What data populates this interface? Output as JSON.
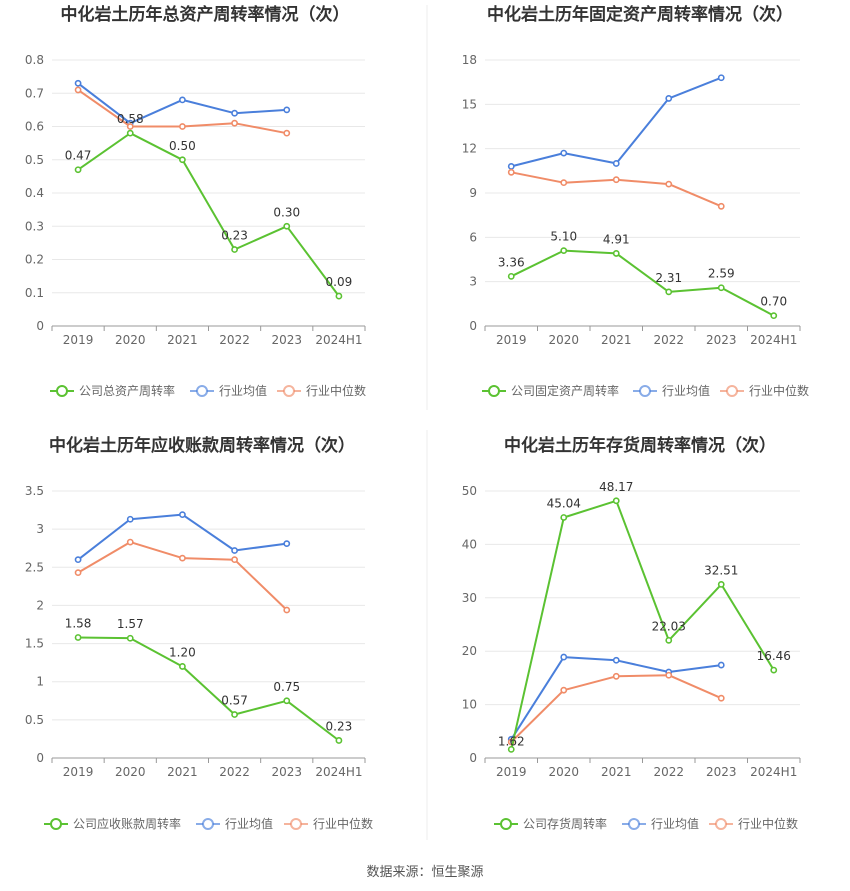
{
  "footer": {
    "source": "数据来源：恒生聚源"
  },
  "colors": {
    "company": "#5bc232",
    "avg": "#4a7fdb",
    "median": "#f08c68"
  },
  "chart_data": [
    {
      "type": "line",
      "title": "中化岩土历年总资产周转率情况（次）",
      "categories": [
        "2019",
        "2020",
        "2021",
        "2022",
        "2023",
        "2024H1"
      ],
      "ylim": [
        0,
        0.8
      ],
      "yticks": [
        "0",
        "0.1",
        "0.2",
        "0.3",
        "0.4",
        "0.5",
        "0.6",
        "0.7",
        "0.8"
      ],
      "series": [
        {
          "name": "公司总资产周转率",
          "role": "company",
          "values": [
            0.47,
            0.58,
            0.5,
            0.23,
            0.3,
            0.09
          ],
          "labels": [
            "0.47",
            "0.58",
            "0.50",
            "0.23",
            "0.30",
            "0.09"
          ]
        },
        {
          "name": "行业均值",
          "role": "avg",
          "values": [
            0.73,
            0.61,
            0.68,
            0.64,
            0.65,
            null
          ]
        },
        {
          "name": "行业中位数",
          "role": "median",
          "values": [
            0.71,
            0.6,
            0.6,
            0.61,
            0.58,
            null
          ]
        }
      ]
    },
    {
      "type": "line",
      "title": "中化岩土历年固定资产周转率情况（次）",
      "categories": [
        "2019",
        "2020",
        "2021",
        "2022",
        "2023",
        "2024H1"
      ],
      "ylim": [
        0,
        18
      ],
      "yticks": [
        "0",
        "3",
        "6",
        "9",
        "12",
        "15",
        "18"
      ],
      "series": [
        {
          "name": "公司固定资产周转率",
          "role": "company",
          "values": [
            3.36,
            5.1,
            4.91,
            2.31,
            2.59,
            0.7
          ],
          "labels": [
            "3.36",
            "5.10",
            "4.91",
            "2.31",
            "2.59",
            "0.70"
          ]
        },
        {
          "name": "行业均值",
          "role": "avg",
          "values": [
            10.8,
            11.7,
            11.0,
            15.4,
            16.8,
            null
          ]
        },
        {
          "name": "行业中位数",
          "role": "median",
          "values": [
            10.4,
            9.7,
            9.9,
            9.6,
            8.1,
            null
          ]
        }
      ]
    },
    {
      "type": "line",
      "title": "中化岩土历年应收账款周转率情况（次）",
      "categories": [
        "2019",
        "2020",
        "2021",
        "2022",
        "2023",
        "2024H1"
      ],
      "ylim": [
        0,
        3.5
      ],
      "yticks": [
        "0",
        "0.5",
        "1",
        "1.5",
        "2",
        "2.5",
        "3",
        "3.5"
      ],
      "series": [
        {
          "name": "公司应收账款周转率",
          "role": "company",
          "values": [
            1.58,
            1.57,
            1.2,
            0.57,
            0.75,
            0.23
          ],
          "labels": [
            "1.58",
            "1.57",
            "1.20",
            "0.57",
            "0.75",
            "0.23"
          ]
        },
        {
          "name": "行业均值",
          "role": "avg",
          "values": [
            2.6,
            3.13,
            3.19,
            2.72,
            2.81,
            null
          ]
        },
        {
          "name": "行业中位数",
          "role": "median",
          "values": [
            2.43,
            2.83,
            2.62,
            2.6,
            1.94,
            null
          ]
        }
      ]
    },
    {
      "type": "line",
      "title": "中化岩土历年存货周转率情况（次）",
      "categories": [
        "2019",
        "2020",
        "2021",
        "2022",
        "2023",
        "2024H1"
      ],
      "ylim": [
        0,
        50
      ],
      "yticks": [
        "0",
        "10",
        "20",
        "30",
        "40",
        "50"
      ],
      "series": [
        {
          "name": "公司存货周转率",
          "role": "company",
          "values": [
            1.62,
            45.04,
            48.17,
            22.03,
            32.51,
            16.46
          ],
          "labels": [
            "1.62",
            "45.04",
            "48.17",
            "22.03",
            "32.51",
            "16.46"
          ]
        },
        {
          "name": "行业均值",
          "role": "avg",
          "values": [
            3.5,
            18.9,
            18.3,
            16.1,
            17.4,
            null
          ]
        },
        {
          "name": "行业中位数",
          "role": "median",
          "values": [
            3.0,
            12.7,
            15.3,
            15.5,
            11.2,
            null
          ]
        }
      ]
    }
  ]
}
